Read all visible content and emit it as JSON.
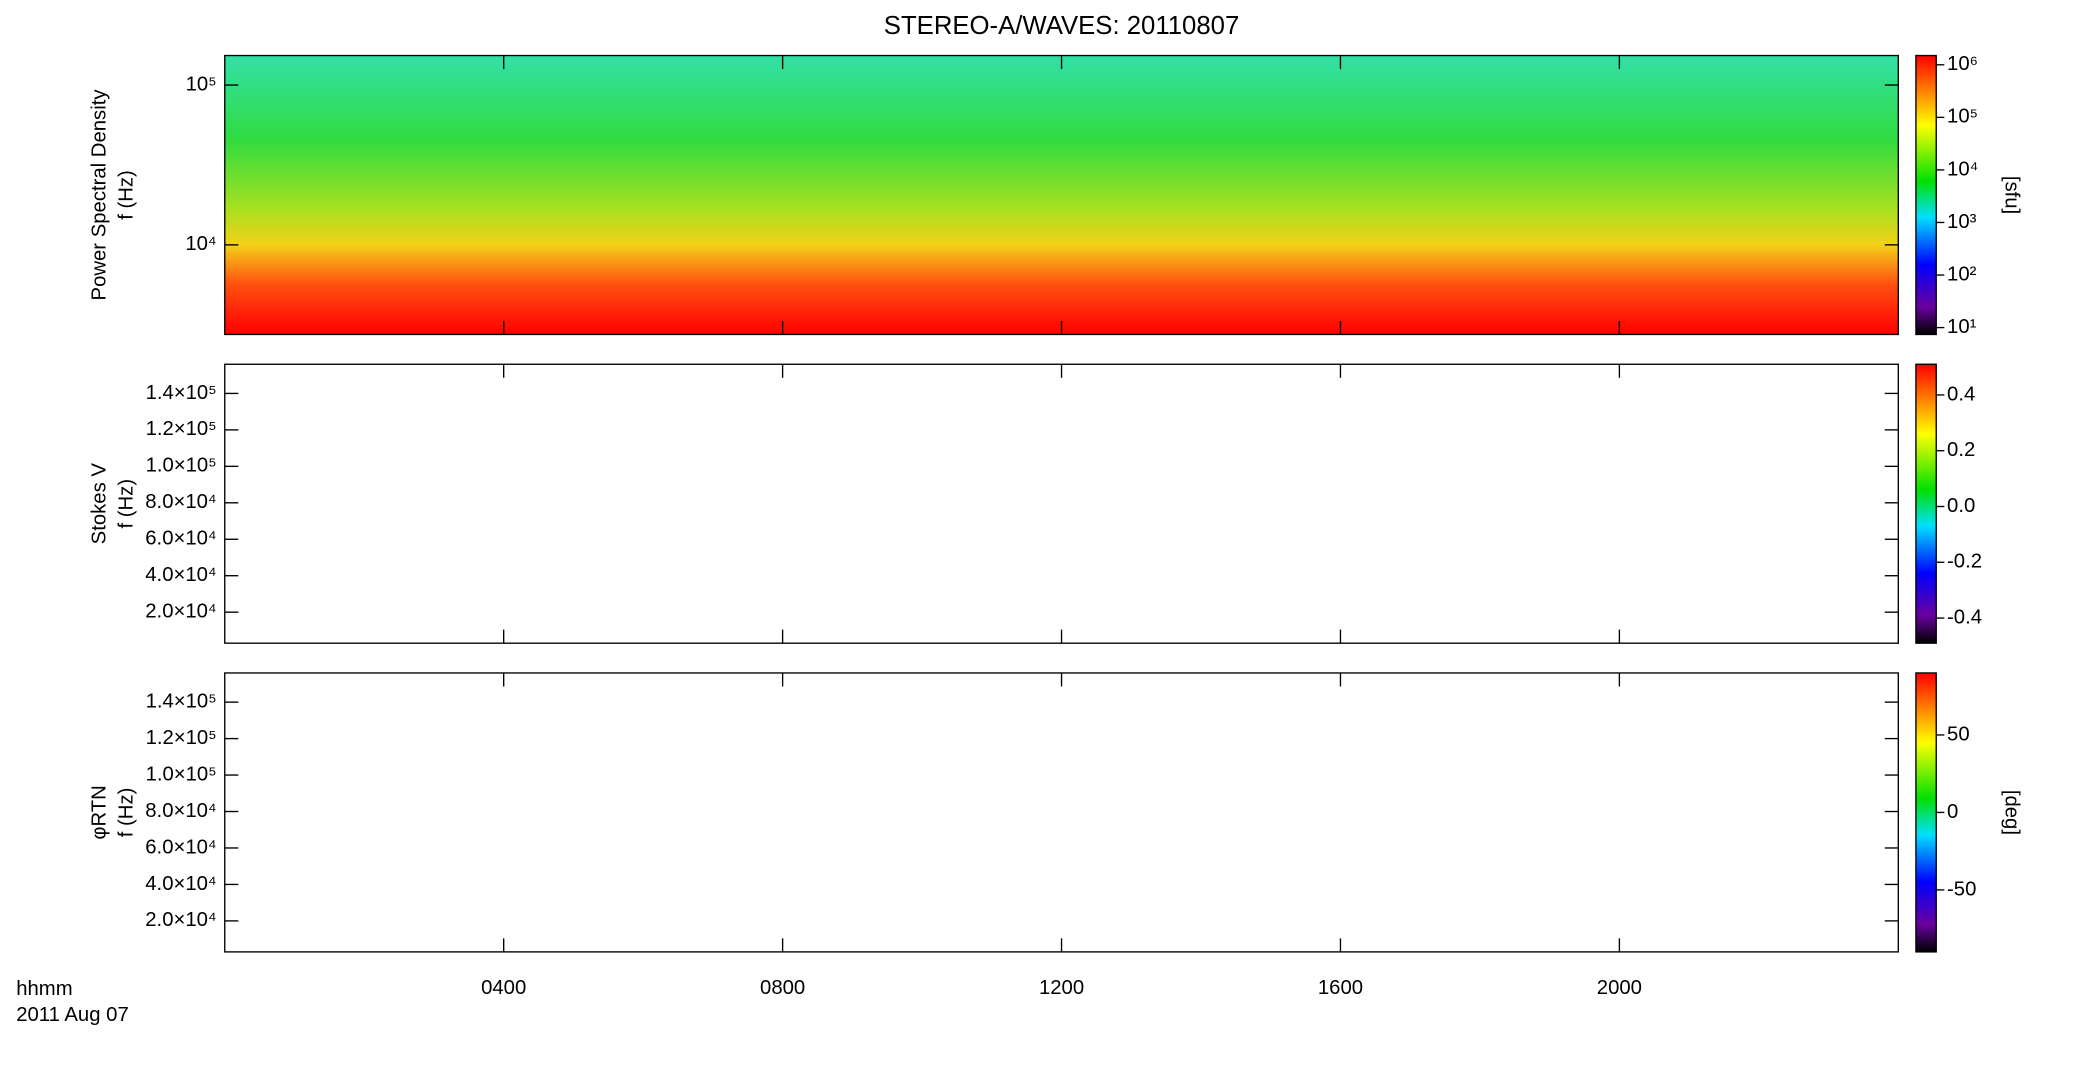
{
  "title": "STEREO-A/WAVES: 20110807",
  "x_axis": {
    "label": [
      "hhmm",
      "2011 Aug 07"
    ],
    "xlim": [
      0,
      24
    ],
    "xticks": [
      {
        "value": 4,
        "label": "0400"
      },
      {
        "value": 8,
        "label": "0800"
      },
      {
        "value": 12,
        "label": "1200"
      },
      {
        "value": 16,
        "label": "1600"
      },
      {
        "value": 20,
        "label": "2000"
      }
    ]
  },
  "chart_data": [
    {
      "type": "spectrogram",
      "ylabel": [
        "Power Spectral Density",
        "f (Hz)"
      ],
      "log": true,
      "ylim": [
        2750,
        153000
      ],
      "yticks": [
        {
          "value": 10000,
          "label": "10⁴"
        },
        {
          "value": 100000,
          "label": "10⁵"
        }
      ],
      "colorbar": {
        "label": "[sfu]",
        "log": true,
        "clim": [
          7.4,
          1500000
        ],
        "ticks": [
          {
            "value": 10,
            "label": "10¹"
          },
          {
            "value": 100,
            "label": "10²"
          },
          {
            "value": 1000,
            "label": "10³"
          },
          {
            "value": 10000,
            "label": "10⁴"
          },
          {
            "value": 100000,
            "label": "10⁵"
          },
          {
            "value": 1000000,
            "label": "10⁶"
          }
        ]
      }
    },
    {
      "type": "spectrogram",
      "ylabel": [
        "Stokes V",
        "f (Hz)"
      ],
      "log": false,
      "ylim": [
        3000,
        156000
      ],
      "yticks": [
        {
          "value": 20000,
          "label": "2.0×10⁴"
        },
        {
          "value": 40000,
          "label": "4.0×10⁴"
        },
        {
          "value": 60000,
          "label": "6.0×10⁴"
        },
        {
          "value": 80000,
          "label": "8.0×10⁴"
        },
        {
          "value": 100000,
          "label": "1.0×10⁵"
        },
        {
          "value": 120000,
          "label": "1.2×10⁵"
        },
        {
          "value": 140000,
          "label": "1.4×10⁵"
        }
      ],
      "colorbar": {
        "log": false,
        "clim": [
          -0.49,
          0.51
        ],
        "ticks": [
          -0.4,
          -0.2,
          {
            "value": 0,
            "label": "0.0"
          },
          0.2,
          0.4
        ]
      }
    },
    {
      "type": "spectrogram",
      "ylabel": [
        "φRTN",
        "f (Hz)"
      ],
      "log": false,
      "ylim": [
        3000,
        156000
      ],
      "yticks": [
        {
          "value": 20000,
          "label": "2.0×10⁴"
        },
        {
          "value": 40000,
          "label": "4.0×10⁴"
        },
        {
          "value": 60000,
          "label": "6.0×10⁴"
        },
        {
          "value": 80000,
          "label": "8.0×10⁴"
        },
        {
          "value": 100000,
          "label": "1.0×10⁵"
        },
        {
          "value": 120000,
          "label": "1.2×10⁵"
        },
        {
          "value": 140000,
          "label": "1.4×10⁵"
        }
      ],
      "colorbar": {
        "label": "[deg]",
        "log": false,
        "clim": [
          -90,
          90
        ],
        "ticks": [
          -50,
          0,
          50
        ]
      }
    }
  ]
}
